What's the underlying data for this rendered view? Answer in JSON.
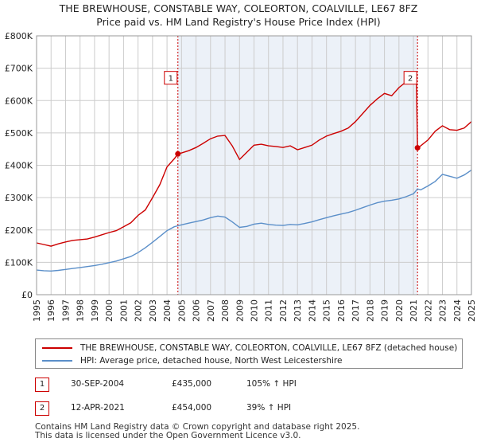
{
  "header": {
    "title_line1": "THE BREWHOUSE, CONSTABLE WAY, COLEORTON, COALVILLE, LE67 8FZ",
    "title_line2": "Price paid vs. HM Land Registry's House Price Index (HPI)"
  },
  "legend": {
    "red_label": "THE BREWHOUSE, CONSTABLE WAY, COLEORTON, COALVILLE, LE67 8FZ (detached house)",
    "blue_label": "HPI: Average price, detached house, North West Leicestershire"
  },
  "sales": [
    {
      "num": "1",
      "date": "30-SEP-2004",
      "price": "£435,000",
      "hpi": "105% ↑ HPI"
    },
    {
      "num": "2",
      "date": "12-APR-2021",
      "price": "£454,000",
      "hpi": "39% ↑ HPI"
    }
  ],
  "footer": {
    "line1": "Contains HM Land Registry data © Crown copyright and database right 2025.",
    "line2": "This data is licensed under the Open Government Licence v3.0."
  },
  "colors": {
    "property": "#cc0000",
    "hpi": "#5b8fc9",
    "grid": "#cccccc",
    "shade": "#dde6f3",
    "vline": "#cc0000"
  },
  "chart_data": {
    "type": "line",
    "xlabel": "",
    "ylabel": "",
    "xlim": [
      1995,
      2025
    ],
    "ylim": [
      0,
      800000
    ],
    "x_ticks": [
      "1995",
      "1996",
      "1997",
      "1998",
      "1999",
      "2000",
      "2001",
      "2002",
      "2003",
      "2004",
      "2005",
      "2006",
      "2007",
      "2008",
      "2009",
      "2010",
      "2011",
      "2012",
      "2013",
      "2014",
      "2015",
      "2016",
      "2017",
      "2018",
      "2019",
      "2020",
      "2021",
      "2022",
      "2023",
      "2024",
      "2025"
    ],
    "y_ticks": [
      {
        "value": 0,
        "label": "£0"
      },
      {
        "value": 100000,
        "label": "£100K"
      },
      {
        "value": 200000,
        "label": "£200K"
      },
      {
        "value": 300000,
        "label": "£300K"
      },
      {
        "value": 400000,
        "label": "£400K"
      },
      {
        "value": 500000,
        "label": "£500K"
      },
      {
        "value": 600000,
        "label": "£600K"
      },
      {
        "value": 700000,
        "label": "£700K"
      },
      {
        "value": 800000,
        "label": "£800K"
      }
    ],
    "grid": true,
    "shaded_ranges": [
      [
        2004.75,
        2021.28
      ],
      [
        2024.95,
        2025.0
      ]
    ],
    "markers": [
      {
        "label": "1",
        "x": 2004.75,
        "y": 435000
      },
      {
        "label": "2",
        "x": 2021.28,
        "y": 454000
      }
    ],
    "series": [
      {
        "name": "THE BREWHOUSE, CONSTABLE WAY, COLEORTON, COALVILLE, LE67 8FZ (detached house)",
        "points": [
          [
            1995.0,
            160000
          ],
          [
            1995.5,
            155000
          ],
          [
            1996.0,
            150000
          ],
          [
            1996.5,
            157000
          ],
          [
            1997.0,
            163000
          ],
          [
            1997.5,
            168000
          ],
          [
            1998.0,
            170000
          ],
          [
            1998.5,
            172000
          ],
          [
            1999.0,
            178000
          ],
          [
            1999.5,
            185000
          ],
          [
            2000.0,
            192000
          ],
          [
            2000.5,
            198000
          ],
          [
            2001.0,
            210000
          ],
          [
            2001.5,
            222000
          ],
          [
            2002.0,
            245000
          ],
          [
            2002.5,
            262000
          ],
          [
            2003.0,
            300000
          ],
          [
            2003.5,
            340000
          ],
          [
            2004.0,
            395000
          ],
          [
            2004.5,
            420000
          ],
          [
            2004.75,
            435000
          ],
          [
            2005.0,
            438000
          ],
          [
            2005.5,
            445000
          ],
          [
            2006.0,
            455000
          ],
          [
            2006.5,
            468000
          ],
          [
            2007.0,
            482000
          ],
          [
            2007.5,
            490000
          ],
          [
            2008.0,
            492000
          ],
          [
            2008.5,
            460000
          ],
          [
            2009.0,
            418000
          ],
          [
            2009.5,
            440000
          ],
          [
            2010.0,
            462000
          ],
          [
            2010.5,
            465000
          ],
          [
            2011.0,
            460000
          ],
          [
            2011.5,
            458000
          ],
          [
            2012.0,
            455000
          ],
          [
            2012.5,
            460000
          ],
          [
            2013.0,
            448000
          ],
          [
            2013.5,
            455000
          ],
          [
            2014.0,
            462000
          ],
          [
            2014.5,
            478000
          ],
          [
            2015.0,
            490000
          ],
          [
            2015.5,
            498000
          ],
          [
            2016.0,
            505000
          ],
          [
            2016.5,
            515000
          ],
          [
            2017.0,
            535000
          ],
          [
            2017.5,
            560000
          ],
          [
            2018.0,
            585000
          ],
          [
            2018.5,
            605000
          ],
          [
            2019.0,
            622000
          ],
          [
            2019.5,
            615000
          ],
          [
            2020.0,
            640000
          ],
          [
            2020.5,
            658000
          ],
          [
            2021.0,
            672000
          ],
          [
            2021.2,
            668000
          ],
          [
            2021.28,
            454000
          ],
          [
            2021.5,
            460000
          ],
          [
            2022.0,
            478000
          ],
          [
            2022.5,
            505000
          ],
          [
            2023.0,
            522000
          ],
          [
            2023.5,
            510000
          ],
          [
            2024.0,
            508000
          ],
          [
            2024.5,
            515000
          ],
          [
            2025.0,
            535000
          ]
        ]
      },
      {
        "name": "HPI: Average price, detached house, North West Leicestershire",
        "points": [
          [
            1995.0,
            76000
          ],
          [
            1995.5,
            74000
          ],
          [
            1996.0,
            73000
          ],
          [
            1996.5,
            75000
          ],
          [
            1997.0,
            78000
          ],
          [
            1997.5,
            81000
          ],
          [
            1998.0,
            84000
          ],
          [
            1998.5,
            87000
          ],
          [
            1999.0,
            90000
          ],
          [
            1999.5,
            94000
          ],
          [
            2000.0,
            99000
          ],
          [
            2000.5,
            104000
          ],
          [
            2001.0,
            111000
          ],
          [
            2001.5,
            118000
          ],
          [
            2002.0,
            130000
          ],
          [
            2002.5,
            145000
          ],
          [
            2003.0,
            162000
          ],
          [
            2003.5,
            180000
          ],
          [
            2004.0,
            198000
          ],
          [
            2004.5,
            210000
          ],
          [
            2004.75,
            213000
          ],
          [
            2005.0,
            216000
          ],
          [
            2005.5,
            221000
          ],
          [
            2006.0,
            226000
          ],
          [
            2006.5,
            231000
          ],
          [
            2007.0,
            238000
          ],
          [
            2007.5,
            243000
          ],
          [
            2008.0,
            240000
          ],
          [
            2008.5,
            225000
          ],
          [
            2009.0,
            208000
          ],
          [
            2009.5,
            211000
          ],
          [
            2010.0,
            218000
          ],
          [
            2010.5,
            221000
          ],
          [
            2011.0,
            217000
          ],
          [
            2011.5,
            215000
          ],
          [
            2012.0,
            214000
          ],
          [
            2012.5,
            217000
          ],
          [
            2013.0,
            216000
          ],
          [
            2013.5,
            220000
          ],
          [
            2014.0,
            225000
          ],
          [
            2014.5,
            232000
          ],
          [
            2015.0,
            238000
          ],
          [
            2015.5,
            244000
          ],
          [
            2016.0,
            249000
          ],
          [
            2016.5,
            254000
          ],
          [
            2017.0,
            261000
          ],
          [
            2017.5,
            269000
          ],
          [
            2018.0,
            277000
          ],
          [
            2018.5,
            284000
          ],
          [
            2019.0,
            289000
          ],
          [
            2019.5,
            292000
          ],
          [
            2020.0,
            296000
          ],
          [
            2020.5,
            303000
          ],
          [
            2021.0,
            312000
          ],
          [
            2021.28,
            327000
          ],
          [
            2021.5,
            324000
          ],
          [
            2022.0,
            336000
          ],
          [
            2022.5,
            350000
          ],
          [
            2023.0,
            372000
          ],
          [
            2023.5,
            366000
          ],
          [
            2024.0,
            360000
          ],
          [
            2024.5,
            370000
          ],
          [
            2025.0,
            385000
          ]
        ]
      }
    ]
  }
}
